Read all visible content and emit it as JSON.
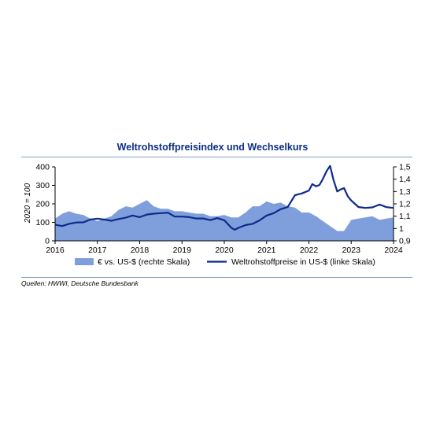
{
  "chart_data": {
    "type": "area",
    "title": "Weltrohstoffpreisindex und Wechselkurs",
    "ylabel_left": "2020 = 100",
    "ylim_left": [
      0,
      400
    ],
    "ylim_right": [
      0.9,
      1.5
    ],
    "yticks_left": [
      "0",
      "100",
      "200",
      "300",
      "400"
    ],
    "yticks_right": [
      "0,9",
      "1",
      "1,1",
      "1,2",
      "1,3",
      "1,4",
      "1,5"
    ],
    "yticks_left_values": [
      0,
      100,
      200,
      300,
      400
    ],
    "yticks_right_values": [
      0.9,
      1.0,
      1.1,
      1.2,
      1.3,
      1.4,
      1.5
    ],
    "xticks": [
      "2016",
      "2017",
      "2018",
      "2019",
      "2020",
      "2021",
      "2022",
      "2023",
      "2024"
    ],
    "xlim": [
      2016,
      2024
    ],
    "legend_position": "bottom",
    "series": [
      {
        "name": "€ vs. US-$ (rechte Skala)",
        "kind": "area",
        "axis": "right",
        "color": "#7f9fdc",
        "x": [
          2016.0,
          2016.17,
          2016.33,
          2016.5,
          2016.67,
          2016.83,
          2017.0,
          2017.17,
          2017.33,
          2017.5,
          2017.67,
          2017.83,
          2018.0,
          2018.17,
          2018.33,
          2018.5,
          2018.67,
          2018.83,
          2019.0,
          2019.17,
          2019.33,
          2019.5,
          2019.67,
          2019.83,
          2020.0,
          2020.17,
          2020.33,
          2020.5,
          2020.67,
          2020.83,
          2021.0,
          2021.17,
          2021.33,
          2021.5,
          2021.67,
          2021.83,
          2022.0,
          2022.17,
          2022.33,
          2022.5,
          2022.67,
          2022.83,
          2023.0,
          2023.17,
          2023.33,
          2023.5,
          2023.67,
          2023.83,
          2024.0
        ],
        "values": [
          1.08,
          1.12,
          1.14,
          1.12,
          1.11,
          1.08,
          1.06,
          1.08,
          1.1,
          1.15,
          1.18,
          1.17,
          1.2,
          1.23,
          1.18,
          1.16,
          1.16,
          1.14,
          1.14,
          1.13,
          1.12,
          1.12,
          1.1,
          1.1,
          1.11,
          1.09,
          1.09,
          1.13,
          1.18,
          1.18,
          1.22,
          1.2,
          1.21,
          1.18,
          1.17,
          1.13,
          1.13,
          1.1,
          1.06,
          1.02,
          0.98,
          0.98,
          1.07,
          1.08,
          1.09,
          1.1,
          1.07,
          1.08,
          1.09
        ]
      },
      {
        "name": "Weltrohstoffpreise in US-$ (linke Skala)",
        "kind": "line",
        "axis": "left",
        "color": "#0d2a8a",
        "x": [
          2016.0,
          2016.17,
          2016.33,
          2016.5,
          2016.67,
          2016.83,
          2017.0,
          2017.17,
          2017.33,
          2017.5,
          2017.67,
          2017.83,
          2018.0,
          2018.17,
          2018.33,
          2018.5,
          2018.67,
          2018.83,
          2019.0,
          2019.17,
          2019.33,
          2019.5,
          2019.67,
          2019.83,
          2020.0,
          2020.17,
          2020.25,
          2020.33,
          2020.5,
          2020.67,
          2020.83,
          2021.0,
          2021.17,
          2021.33,
          2021.5,
          2021.67,
          2021.83,
          2022.0,
          2022.08,
          2022.17,
          2022.25,
          2022.33,
          2022.42,
          2022.5,
          2022.58,
          2022.67,
          2022.75,
          2022.83,
          2022.92,
          2023.0,
          2023.17,
          2023.33,
          2023.5,
          2023.67,
          2023.83,
          2024.0
        ],
        "values": [
          87,
          80,
          92,
          99,
          100,
          115,
          120,
          115,
          108,
          118,
          125,
          137,
          128,
          142,
          147,
          150,
          152,
          131,
          131,
          128,
          121,
          121,
          112,
          123,
          111,
          70,
          60,
          70,
          85,
          92,
          110,
          137,
          150,
          171,
          183,
          247,
          256,
          272,
          307,
          295,
          302,
          334,
          378,
          405,
          330,
          267,
          278,
          285,
          240,
          218,
          183,
          178,
          181,
          196,
          182,
          178
        ]
      }
    ]
  },
  "source_note": "Quellen: HWWI, Deutsche Bundesbank"
}
